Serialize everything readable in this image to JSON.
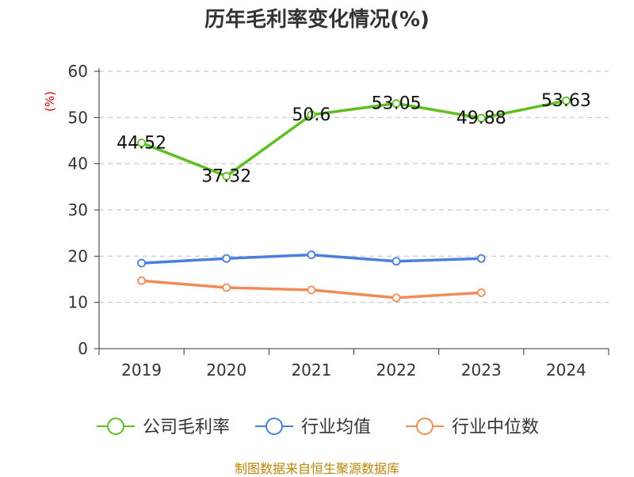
{
  "colors": {
    "gross_margin": "#5dbf20",
    "industry_avg": "#4a7fdc",
    "industry_median": "#f08c5a",
    "source_note": "#b8860b",
    "ylabel": "#cc0000",
    "grid": "#c8c8c8"
  },
  "chart_data": {
    "type": "line",
    "title": "历年毛利率变化情况(%)",
    "xlabel": "",
    "ylabel": "(%)",
    "ylim": [
      0,
      60
    ],
    "yticks": [
      0,
      10,
      20,
      30,
      40,
      50,
      60
    ],
    "grid": true,
    "legend_position": "bottom",
    "categories": [
      "2019",
      "2020",
      "2021",
      "2022",
      "2023",
      "2024"
    ],
    "series": [
      {
        "name": "公司毛利率",
        "values": [
          44.52,
          37.32,
          50.6,
          53.05,
          49.88,
          53.63
        ],
        "data_labels": [
          "44.52",
          "37.32",
          "50.6",
          "53.05",
          "49.88",
          "53.63"
        ],
        "color_key": "gross_margin"
      },
      {
        "name": "行业均值",
        "values": [
          18.5,
          19.5,
          20.3,
          18.9,
          19.5,
          null
        ],
        "color_key": "industry_avg"
      },
      {
        "name": "行业中位数",
        "values": [
          14.7,
          13.2,
          12.7,
          11.0,
          12.1,
          null
        ],
        "color_key": "industry_median"
      }
    ]
  },
  "source_note": "制图数据来自恒生聚源数据库"
}
